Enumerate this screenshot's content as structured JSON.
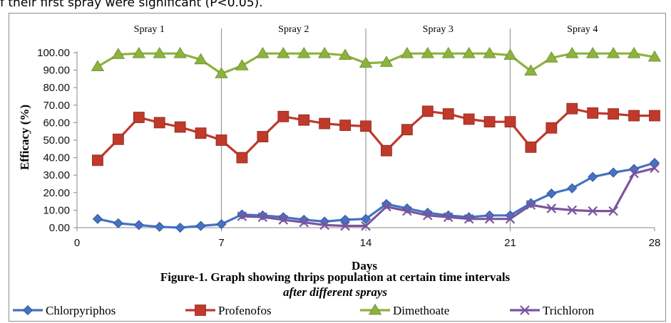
{
  "intro_text": "f their first spray were significant (P<0.05).",
  "chart_data": {
    "type": "line",
    "title": "Figure-1. Graph showing thrips population at certain time intervals",
    "title_line2": "after different sprays",
    "xlabel": "Days",
    "ylabel": "Efficacy (%)",
    "xlim": [
      0,
      28
    ],
    "ylim": [
      0,
      100
    ],
    "x_ticks": [
      "0",
      "7",
      "14",
      "21",
      "28"
    ],
    "y_ticks": [
      "0.00",
      "10.00",
      "20.00",
      "30.00",
      "40.00",
      "50.00",
      "60.00",
      "70.00",
      "80.00",
      "90.00",
      "100.00"
    ],
    "spray_labels": [
      "Spray 1",
      "Spray 2",
      "Spray 3",
      "Spray 4"
    ],
    "spray_boundaries": [
      7,
      14,
      21
    ],
    "grid": false,
    "legend_position": "bottom",
    "x": [
      1,
      2,
      3,
      4,
      5,
      6,
      7,
      8,
      9,
      10,
      11,
      12,
      13,
      14,
      15,
      16,
      17,
      18,
      19,
      20,
      21,
      22,
      23,
      24,
      25,
      26,
      27,
      28
    ],
    "series": [
      {
        "name": "Chlorpyriphos",
        "color": "#4472c4",
        "marker": "diamond",
        "values": [
          5,
          2.5,
          1.5,
          0.5,
          0,
          1,
          2,
          7.5,
          7,
          6,
          4.5,
          3.5,
          4.5,
          5,
          13.5,
          11,
          8.5,
          7,
          6,
          7,
          7,
          14,
          19.5,
          22.5,
          29,
          31.5,
          33.5,
          37
        ]
      },
      {
        "name": "Profenofos",
        "color": "#c0392b",
        "marker": "square",
        "values": [
          38.5,
          50.5,
          63,
          60,
          57.5,
          54,
          50,
          40,
          52,
          63.5,
          61.5,
          59.5,
          58.5,
          58,
          44,
          56,
          66.5,
          65,
          62,
          60.5,
          60.5,
          46,
          57,
          68,
          65.5,
          65,
          64,
          64
        ]
      },
      {
        "name": "Dimethoate",
        "color": "#8bb33e",
        "marker": "triangle",
        "values": [
          92,
          99,
          99.5,
          99.5,
          99.5,
          96,
          88,
          92.5,
          99.5,
          99.5,
          99.5,
          99.5,
          98.5,
          94,
          94.5,
          99.5,
          99.5,
          99.5,
          99.5,
          99.5,
          98.5,
          89.5,
          97,
          99.5,
          99.5,
          99.5,
          99.5,
          97.5
        ]
      },
      {
        "name": "Trichloron",
        "color": "#7a559e",
        "marker": "x",
        "values": [
          null,
          null,
          null,
          null,
          null,
          null,
          null,
          6.5,
          6,
          4.5,
          3,
          1.5,
          1,
          1,
          12,
          9.5,
          7,
          6,
          5,
          5,
          5,
          13,
          11,
          10,
          9.5,
          9.5,
          31,
          34
        ]
      }
    ]
  }
}
